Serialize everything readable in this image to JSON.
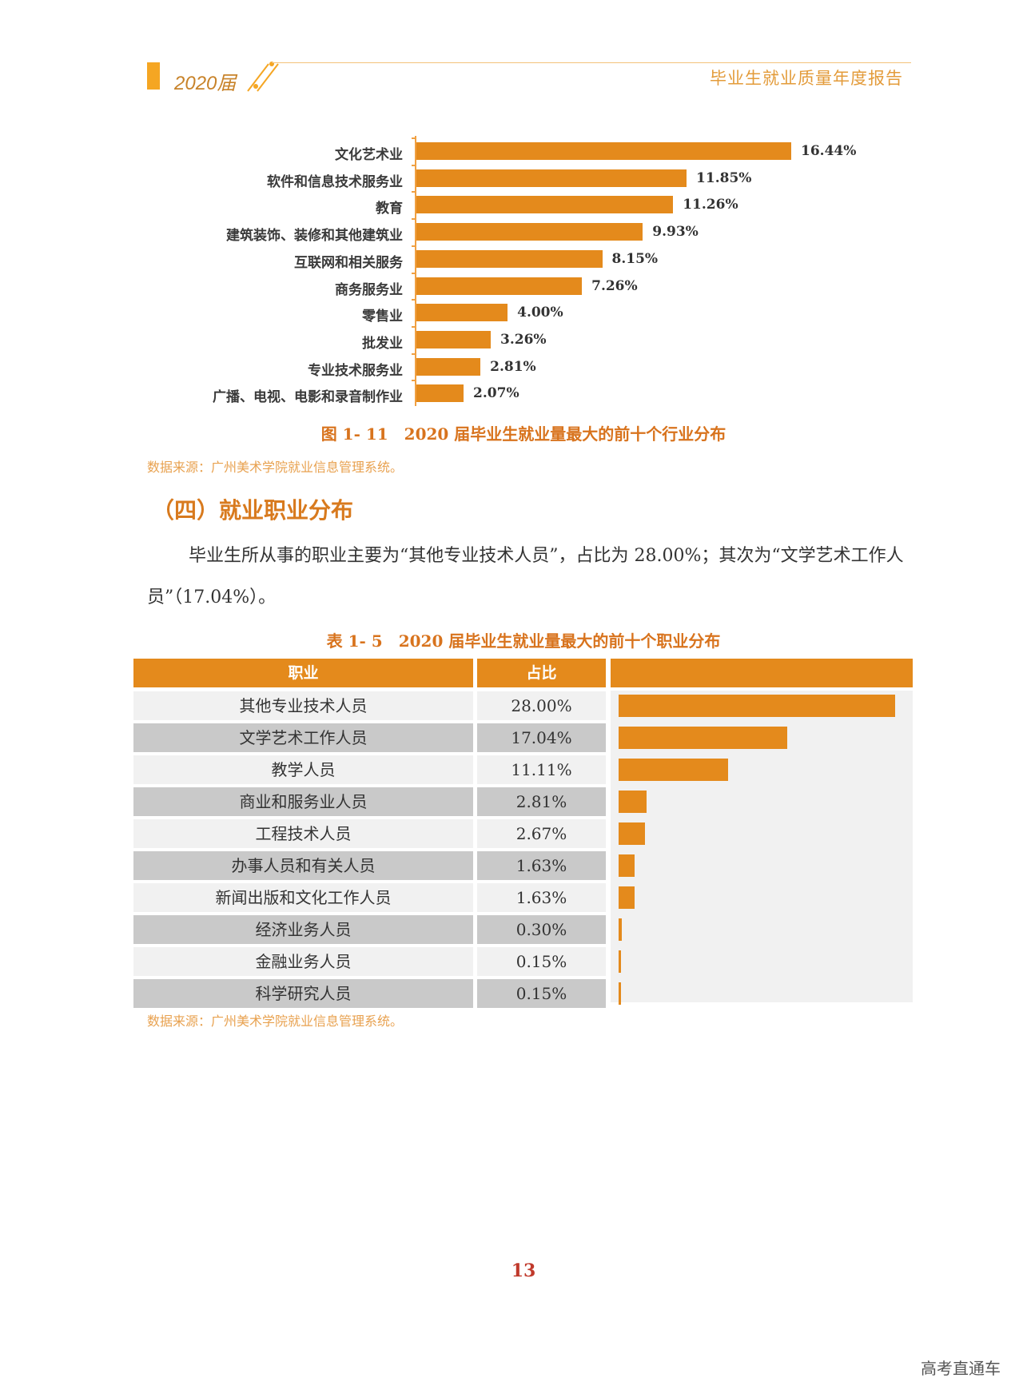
{
  "header": {
    "year_label": "2020届",
    "report_title": "毕业生就业质量年度报告"
  },
  "figure": {
    "caption": "图 1- 11　2020 届毕业生就业量最大的前十个行业分布",
    "source": "数据来源：广州美术学院就业信息管理系统。"
  },
  "chart_data": {
    "type": "bar",
    "orientation": "horizontal",
    "categories": [
      "文化艺术业",
      "软件和信息技术服务业",
      "教育",
      "建筑装饰、装修和其他建筑业",
      "互联网和相关服务",
      "商务服务业",
      "零售业",
      "批发业",
      "专业技术服务业",
      "广播、电视、电影和录音制作业"
    ],
    "values": [
      16.44,
      11.85,
      11.26,
      9.93,
      8.15,
      7.26,
      4.0,
      3.26,
      2.81,
      2.07
    ],
    "value_labels": [
      "16.44%",
      "11.85%",
      "11.26%",
      "9.93%",
      "8.15%",
      "7.26%",
      "4.00%",
      "3.26%",
      "2.81%",
      "2.07%"
    ],
    "bar_color": "#e48a1c"
  },
  "section": {
    "heading": "（四）就业职业分布",
    "paragraph": "毕业生所从事的职业主要为“其他专业技术人员”，占比为 28.00%；其次为“文学艺术工作人员”（17.04%）。"
  },
  "table": {
    "caption": "表 1- 5　2020 届毕业生就业量最大的前十个职业分布",
    "headers": [
      "职业",
      "占比"
    ],
    "rows": [
      {
        "job": "其他专业技术人员",
        "share": "28.00%",
        "value": 28.0
      },
      {
        "job": "文学艺术工作人员",
        "share": "17.04%",
        "value": 17.04
      },
      {
        "job": "教学人员",
        "share": "11.11%",
        "value": 11.11
      },
      {
        "job": "商业和服务业人员",
        "share": "2.81%",
        "value": 2.81
      },
      {
        "job": "工程技术人员",
        "share": "2.67%",
        "value": 2.67
      },
      {
        "job": "办事人员和有关人员",
        "share": "1.63%",
        "value": 1.63
      },
      {
        "job": "新闻出版和文化工作人员",
        "share": "1.63%",
        "value": 1.63
      },
      {
        "job": "经济业务人员",
        "share": "0.30%",
        "value": 0.3
      },
      {
        "job": "金融业务人员",
        "share": "0.15%",
        "value": 0.15
      },
      {
        "job": "科学研究人员",
        "share": "0.15%",
        "value": 0.15
      }
    ],
    "source": "数据来源：广州美术学院就业信息管理系统。"
  },
  "page_number": "13",
  "watermark": "高考直通车",
  "accent_color": "#e48a1c"
}
